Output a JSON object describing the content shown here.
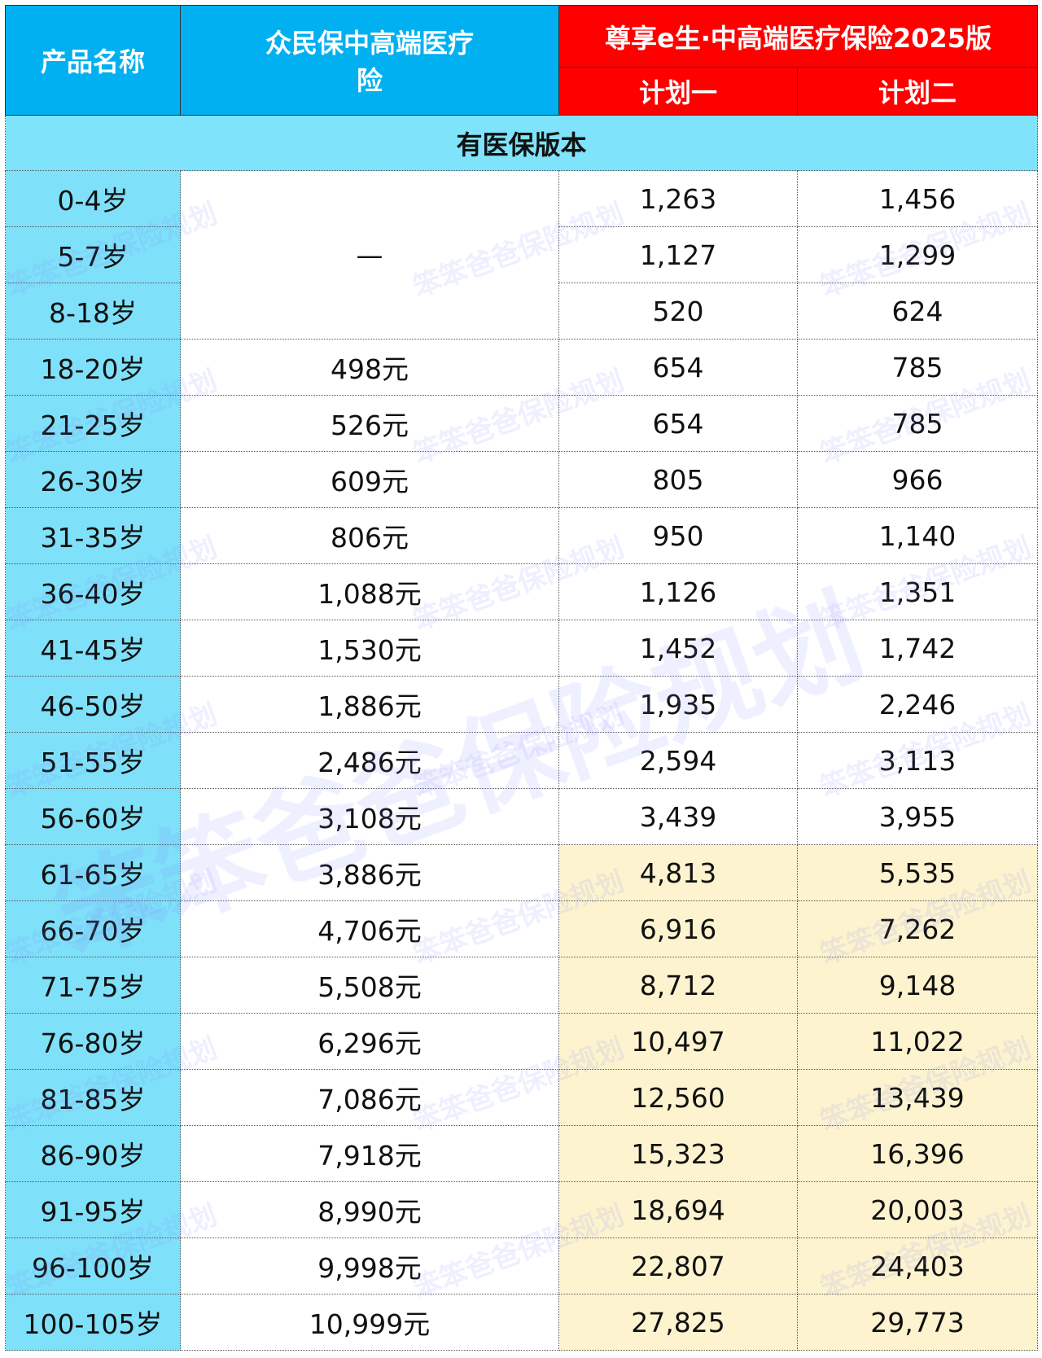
{
  "header": {
    "product_label": "产品名称",
    "product_a": "众民保中高端医疗险",
    "product_b": "尊享e生·中高端医疗保险2025版",
    "plan1": "计划一",
    "plan2": "计划二"
  },
  "section": "有医保版本",
  "merged_value": "—",
  "rows": [
    {
      "age": "0-4岁",
      "plan1": "1,263",
      "plan2": "1,456"
    },
    {
      "age": "5-7岁",
      "plan1": "1,127",
      "plan2": "1,299"
    },
    {
      "age": "8-18岁",
      "plan1": "520",
      "plan2": "624"
    },
    {
      "age": "18-20岁",
      "zhongmin": "498元",
      "plan1": "654",
      "plan2": "785"
    },
    {
      "age": "21-25岁",
      "zhongmin": "526元",
      "plan1": "654",
      "plan2": "785"
    },
    {
      "age": "26-30岁",
      "zhongmin": "609元",
      "plan1": "805",
      "plan2": "966"
    },
    {
      "age": "31-35岁",
      "zhongmin": "806元",
      "plan1": "950",
      "plan2": "1,140"
    },
    {
      "age": "36-40岁",
      "zhongmin": "1,088元",
      "plan1": "1,126",
      "plan2": "1,351"
    },
    {
      "age": "41-45岁",
      "zhongmin": "1,530元",
      "plan1": "1,452",
      "plan2": "1,742"
    },
    {
      "age": "46-50岁",
      "zhongmin": "1,886元",
      "plan1": "1,935",
      "plan2": "2,246"
    },
    {
      "age": "51-55岁",
      "zhongmin": "2,486元",
      "plan1": "2,594",
      "plan2": "3,113"
    },
    {
      "age": "56-60岁",
      "zhongmin": "3,108元",
      "plan1": "3,439",
      "plan2": "3,955"
    },
    {
      "age": "61-65岁",
      "zhongmin": "3,886元",
      "plan1": "4,813",
      "plan2": "5,535"
    },
    {
      "age": "66-70岁",
      "zhongmin": "4,706元",
      "plan1": "6,916",
      "plan2": "7,262"
    },
    {
      "age": "71-75岁",
      "zhongmin": "5,508元",
      "plan1": "8,712",
      "plan2": "9,148"
    },
    {
      "age": "76-80岁",
      "zhongmin": "6,296元",
      "plan1": "10,497",
      "plan2": "11,022"
    },
    {
      "age": "81-85岁",
      "zhongmin": "7,086元",
      "plan1": "12,560",
      "plan2": "13,439"
    },
    {
      "age": "86-90岁",
      "zhongmin": "7,918元",
      "plan1": "15,323",
      "plan2": "16,396"
    },
    {
      "age": "91-95岁",
      "zhongmin": "8,990元",
      "plan1": "18,694",
      "plan2": "20,003"
    },
    {
      "age": "96-100岁",
      "zhongmin": "9,998元",
      "plan1": "22,807",
      "plan2": "24,403"
    },
    {
      "age": "100-105岁",
      "zhongmin": "10,999元",
      "plan1": "27,825",
      "plan2": "29,773"
    }
  ],
  "watermark": "笨笨爸爸保险规划"
}
